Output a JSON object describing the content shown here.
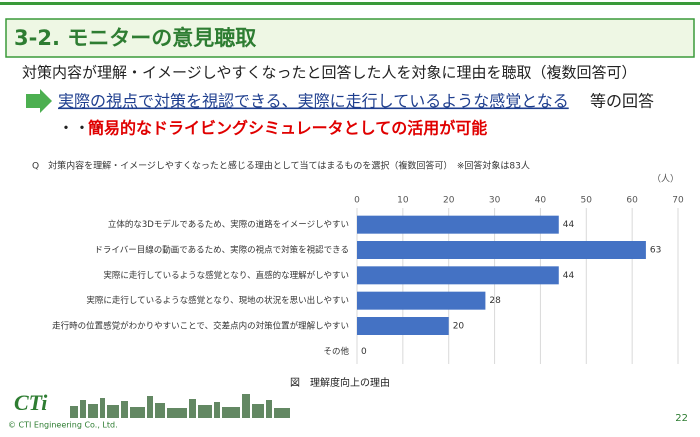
{
  "header": {
    "title": "3-2. モニターの意見聴取",
    "subtitle": "対策内容が理解・イメージしやすくなったと回答した人を対象に理由を聴取（複数回答可）",
    "point": {
      "underlined": "実際の視点で対策を視認できる、実際に走行しているような感覚となる",
      "suffix": "等の回答"
    },
    "conclusion": {
      "prefix": "・・・",
      "text": "簡易的なドライビングシミュレータとしての活用が可能"
    }
  },
  "chart_data": {
    "type": "bar",
    "orientation": "horizontal",
    "title": "Q　対策内容を理解・イメージしやすくなったと感じる理由として当てはまるものを選択（複数回答可）　※回答対象は83人",
    "unit": "（人）",
    "caption": "図　理解度向上の理由",
    "categories": [
      "立体的な3Dモデルであるため、実際の道路をイメージしやすい",
      "ドライバー目線の動画であるため、実際の視点で対策を視認できる",
      "実際に走行しているような感覚となり、直感的な理解がしやすい",
      "実際に走行しているような感覚となり、現地の状況を思い出しやすい",
      "走行時の位置感覚がわかりやすいことで、交差点内の対策位置が理解しやすい",
      "その他"
    ],
    "values": [
      44,
      63,
      44,
      28,
      20,
      0
    ],
    "color": "#4472c4",
    "xlim": [
      0,
      70
    ],
    "xticks": [
      0,
      10,
      20,
      30,
      40,
      50,
      60,
      70
    ],
    "grid": true
  },
  "footer": {
    "logo": "CTi",
    "copyright": "© CTI Engineering Co., Ltd.",
    "page": "22"
  }
}
